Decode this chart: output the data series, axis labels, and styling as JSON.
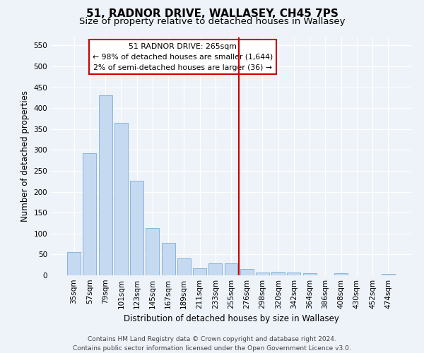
{
  "title": "51, RADNOR DRIVE, WALLASEY, CH45 7PS",
  "subtitle": "Size of property relative to detached houses in Wallasey",
  "xlabel": "Distribution of detached houses by size in Wallasey",
  "ylabel": "Number of detached properties",
  "footer_line1": "Contains HM Land Registry data © Crown copyright and database right 2024.",
  "footer_line2": "Contains public sector information licensed under the Open Government Licence v3.0.",
  "bar_labels": [
    "35sqm",
    "57sqm",
    "79sqm",
    "101sqm",
    "123sqm",
    "145sqm",
    "167sqm",
    "189sqm",
    "211sqm",
    "233sqm",
    "255sqm",
    "276sqm",
    "298sqm",
    "320sqm",
    "342sqm",
    "364sqm",
    "386sqm",
    "408sqm",
    "430sqm",
    "452sqm",
    "474sqm"
  ],
  "bar_values": [
    55,
    293,
    430,
    365,
    227,
    113,
    77,
    40,
    17,
    28,
    28,
    16,
    7,
    9,
    7,
    5,
    0,
    5,
    0,
    0,
    4
  ],
  "bar_color": "#c5d9f0",
  "bar_edge_color": "#7bafd4",
  "property_line_x": 10.5,
  "annotation_title": "51 RADNOR DRIVE: 265sqm",
  "annotation_line1": "← 98% of detached houses are smaller (1,644)",
  "annotation_line2": "2% of semi-detached houses are larger (36) →",
  "line_color": "#cc0000",
  "ylim": [
    0,
    570
  ],
  "yticks": [
    0,
    50,
    100,
    150,
    200,
    250,
    300,
    350,
    400,
    450,
    500,
    550
  ],
  "bg_color": "#eef2f9",
  "grid_color": "#ffffff",
  "title_fontsize": 11,
  "subtitle_fontsize": 9.5,
  "axis_label_fontsize": 8.5,
  "tick_fontsize": 7.5,
  "footer_fontsize": 6.5
}
